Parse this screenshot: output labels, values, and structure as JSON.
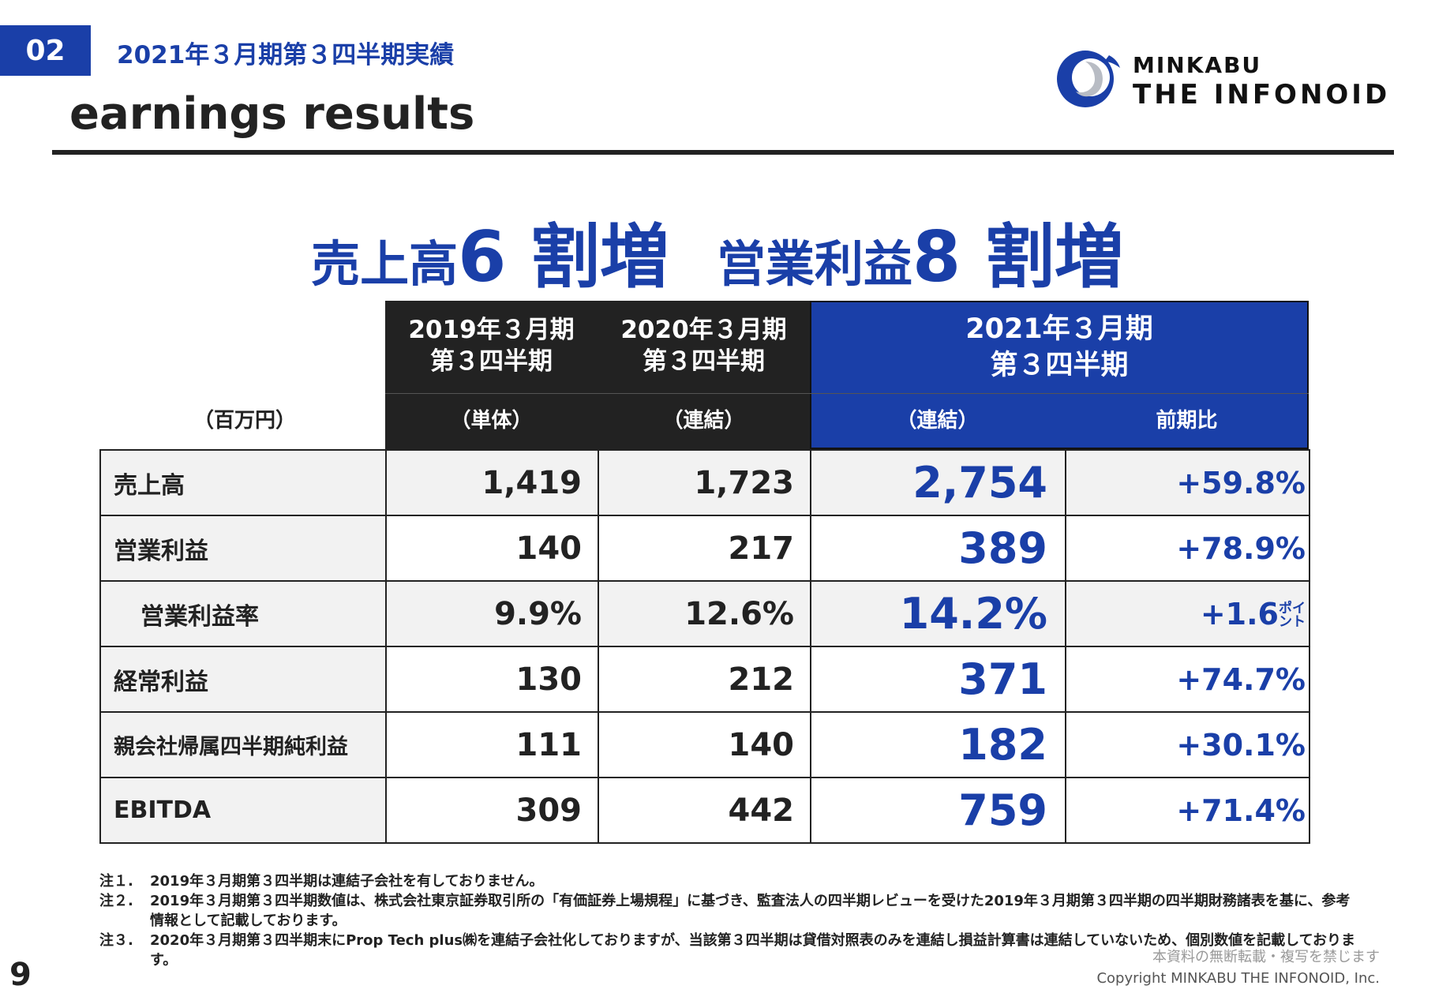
{
  "section": {
    "number": "02",
    "title": "2021年３月期第３四半期実績"
  },
  "page_title": "earnings results",
  "logo": {
    "line1": "MINKABU",
    "line2": "THE INFONOID"
  },
  "headline": {
    "p1": "売上高",
    "p1_big": "6 割増",
    "p2": "営業利益",
    "p2_big": "8 割増"
  },
  "table": {
    "unit": "（百万円）",
    "columns": [
      {
        "line1": "2019年３月期",
        "line2": "第３四半期",
        "sub": "（単体）"
      },
      {
        "line1": "2020年３月期",
        "line2": "第３四半期",
        "sub": "（連結）"
      },
      {
        "line1": "2021年３月期",
        "line2": "第３四半期",
        "sub": "（連結）",
        "sub2": "前期比"
      }
    ],
    "rows": [
      {
        "label": "売上高",
        "v2019": "1,419",
        "v2020": "1,723",
        "v2021": "2,754",
        "yoy": "+59.8%"
      },
      {
        "label": "営業利益",
        "v2019": "140",
        "v2020": "217",
        "v2021": "389",
        "yoy": "+78.9%"
      },
      {
        "label": "営業利益率",
        "v2019": "9.9%",
        "v2020": "12.6%",
        "v2021": "14.2%",
        "yoy": "+1.6",
        "yoy_unit_a": "ポイ",
        "yoy_unit_b": "ント"
      },
      {
        "label": "経常利益",
        "v2019": "130",
        "v2020": "212",
        "v2021": "371",
        "yoy": "+74.7%"
      },
      {
        "label": "親会社帰属四半期純利益",
        "v2019": "111",
        "v2020": "140",
        "v2021": "182",
        "yoy": "+30.1%"
      },
      {
        "label": "EBITDA",
        "v2019": "309",
        "v2020": "442",
        "v2021": "759",
        "yoy": "+71.4%"
      }
    ]
  },
  "notes": [
    {
      "key": "注１.",
      "text": "2019年３月期第３四半期は連結子会社を有しておりません。"
    },
    {
      "key": "注２.",
      "text": "2019年３月期第３四半期数値は、株式会社東京証券取引所の「有価証券上場規程」に基づき、監査法人の四半期レビューを受けた2019年３月期第３四半期の四半期財務諸表を基に、参考情報として記載しております。"
    },
    {
      "key": "注３.",
      "text": "2020年３月期第３四半期末にProp Tech plus㈱を連結子会社化しておりますが、当該第３四半期は貸借対照表のみを連結し損益計算書は連結していないため、個別数値を記載しております。"
    }
  ],
  "footer": {
    "page": "9",
    "notice": "本資料の無断転載・複写を禁じます",
    "copyright": "Copyright MINKABU THE INFONOID, Inc."
  },
  "colors": {
    "accent": "#1a3fa8",
    "header_dark": "#222222",
    "row_shade": "#f2f2f2"
  }
}
